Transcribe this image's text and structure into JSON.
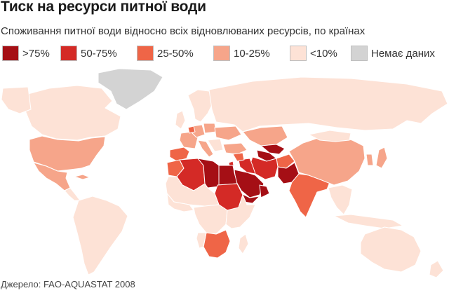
{
  "title": "Тиск на ресурси питної води",
  "subtitle": "Споживання питної води відносно всіх відновлюваних ресурсів, по країнах",
  "legend": [
    {
      "label": ">75%",
      "color": "#a50f15"
    },
    {
      "label": "50-75%",
      "color": "#d42a26"
    },
    {
      "label": "25-50%",
      "color": "#ef6547"
    },
    {
      "label": "10-25%",
      "color": "#f6a58a"
    },
    {
      "label": "<10%",
      "color": "#fde2d6"
    },
    {
      "label": "Немає даних",
      "color": "#d3d3d3"
    }
  ],
  "map": {
    "ocean_color": "#ffffff",
    "border_color": "#ffffff",
    "regions": [
      {
        "name": "Canada",
        "class": "<10%"
      },
      {
        "name": "Alaska",
        "class": "<10%"
      },
      {
        "name": "Greenland",
        "class": "Немає даних"
      },
      {
        "name": "United States",
        "class": "10-25%"
      },
      {
        "name": "Mexico",
        "class": "10-25%"
      },
      {
        "name": "Cuba",
        "class": "10-25%"
      },
      {
        "name": "Central America",
        "class": "<10%"
      },
      {
        "name": "South America",
        "class": "<10%"
      },
      {
        "name": "Scandinavia",
        "class": "<10%"
      },
      {
        "name": "United Kingdom",
        "class": "<10%"
      },
      {
        "name": "Spain",
        "class": "25-50%"
      },
      {
        "name": "France",
        "class": "10-25%"
      },
      {
        "name": "Germany",
        "class": "10-25%"
      },
      {
        "name": "Italy",
        "class": "10-25%"
      },
      {
        "name": "Poland",
        "class": "10-25%"
      },
      {
        "name": "Belgium",
        "class": "25-50%"
      },
      {
        "name": "Ukraine",
        "class": "10-25%"
      },
      {
        "name": "Balkans",
        "class": "<10%"
      },
      {
        "name": "Russia",
        "class": "<10%"
      },
      {
        "name": "Kazakhstan",
        "class": "10-25%"
      },
      {
        "name": "Uzbekistan",
        "class": ">75%"
      },
      {
        "name": "Turkmenistan",
        "class": ">75%"
      },
      {
        "name": "Afghanistan",
        "class": "25-50%"
      },
      {
        "name": "Iran",
        "class": "50-75%"
      },
      {
        "name": "Iraq",
        "class": "50-75%"
      },
      {
        "name": "Turkey",
        "class": "10-25%"
      },
      {
        "name": "Syria",
        "class": "25-50%"
      },
      {
        "name": "Israel",
        "class": "50-75%"
      },
      {
        "name": "Saudi Arabia",
        "class": ">75%"
      },
      {
        "name": "Yemen",
        "class": ">75%"
      },
      {
        "name": "Oman",
        "class": ">75%"
      },
      {
        "name": "Pakistan",
        "class": ">75%"
      },
      {
        "name": "India",
        "class": "25-50%"
      },
      {
        "name": "China",
        "class": "10-25%"
      },
      {
        "name": "Mongolia",
        "class": "<10%"
      },
      {
        "name": "Korea",
        "class": "10-25%"
      },
      {
        "name": "Japan",
        "class": "10-25%"
      },
      {
        "name": "Southeast Asia",
        "class": "<10%"
      },
      {
        "name": "Indonesia",
        "class": "<10%"
      },
      {
        "name": "Morocco",
        "class": "25-50%"
      },
      {
        "name": "Algeria",
        "class": "50-75%"
      },
      {
        "name": "Libya",
        "class": ">75%"
      },
      {
        "name": "Egypt",
        "class": ">75%"
      },
      {
        "name": "Sudan",
        "class": "50-75%"
      },
      {
        "name": "Sahel",
        "class": "<10%"
      },
      {
        "name": "West Africa",
        "class": "<10%"
      },
      {
        "name": "Central Africa",
        "class": "<10%"
      },
      {
        "name": "East Africa",
        "class": "<10%"
      },
      {
        "name": "South Africa",
        "class": "25-50%"
      },
      {
        "name": "Namibia",
        "class": "<10%"
      },
      {
        "name": "Madagascar",
        "class": "<10%"
      },
      {
        "name": "Australia",
        "class": "<10%"
      },
      {
        "name": "New Zealand",
        "class": "<10%"
      }
    ]
  },
  "source": "Джерело: FAO-AQUASTAT 2008"
}
